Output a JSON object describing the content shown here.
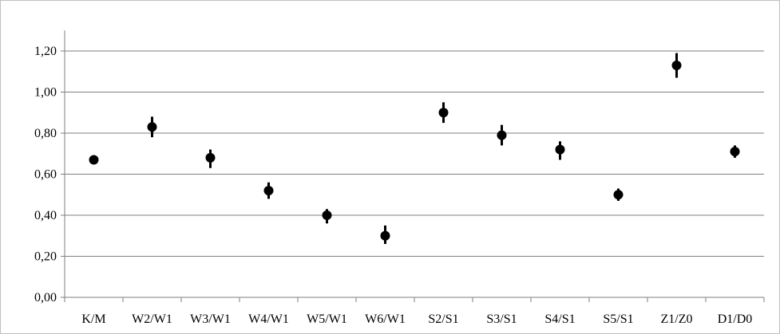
{
  "chart_data": {
    "type": "scatter",
    "title": "",
    "xlabel": "",
    "ylabel": "",
    "ylim": [
      0,
      1.3
    ],
    "y_ticks": [
      "0,00",
      "0,20",
      "0,40",
      "0,60",
      "0,80",
      "1,00",
      "1,20"
    ],
    "y_tick_values": [
      0,
      0.2,
      0.4,
      0.6,
      0.8,
      1.0,
      1.2
    ],
    "grid": "horizontal",
    "legend": "none",
    "categories": [
      "K/M",
      "W2/W1",
      "W3/W1",
      "W4/W1",
      "W5/W1",
      "W6/W1",
      "S2/S1",
      "S3/S1",
      "S4/S1",
      "S5/S1",
      "Z1/Z0",
      "D1/D0"
    ],
    "values": [
      0.67,
      0.83,
      0.68,
      0.52,
      0.4,
      0.3,
      0.9,
      0.79,
      0.72,
      0.5,
      1.13,
      0.71
    ],
    "error_low": [
      0.65,
      0.78,
      0.63,
      0.48,
      0.36,
      0.26,
      0.85,
      0.74,
      0.67,
      0.47,
      1.07,
      0.68
    ],
    "error_high": [
      0.69,
      0.88,
      0.72,
      0.56,
      0.43,
      0.35,
      0.95,
      0.84,
      0.76,
      0.53,
      1.19,
      0.74
    ],
    "colors": {
      "marker": "#000000",
      "grid": "#7f7f7f",
      "axis": "#7f7f7f",
      "frame": "#bfbfbf"
    }
  }
}
